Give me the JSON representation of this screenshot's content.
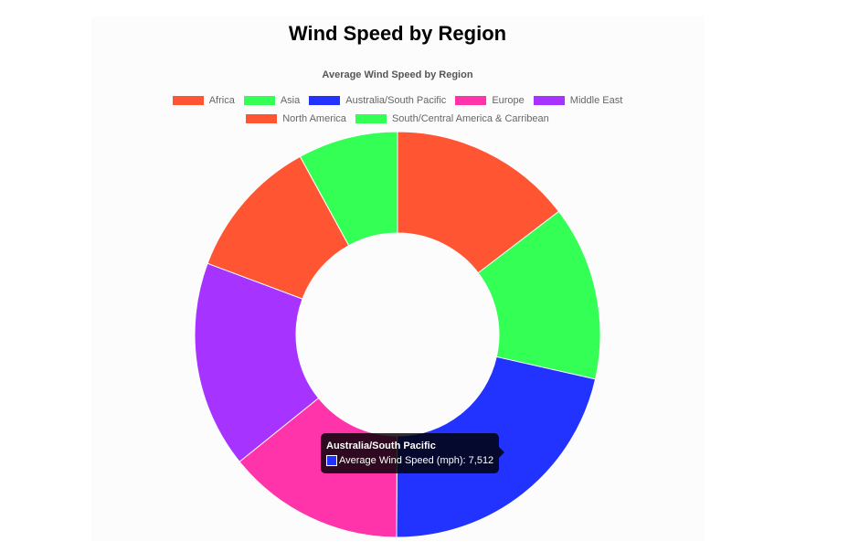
{
  "title": "Wind Speed by Region",
  "chart_data": {
    "type": "doughnut",
    "title": "Average Wind Speed by Region",
    "value_label": "Average Wind Speed (mph)",
    "categories": [
      "Africa",
      "Asia",
      "Australia/South Pacific",
      "Europe",
      "Middle East",
      "North America",
      "South/Central America & Carribean"
    ],
    "values": [
      5100,
      4850,
      7512,
      4930,
      5750,
      3950,
      2780
    ],
    "colors": [
      "#ff5533",
      "#33ff55",
      "#2233ff",
      "#ff33aa",
      "#a633ff",
      "#ff5533",
      "#33ff55"
    ],
    "legend_position": "top"
  },
  "tooltip": {
    "title": "Australia/South Pacific",
    "label": "Average Wind Speed (mph): 7,512",
    "color": "#2233ff"
  }
}
